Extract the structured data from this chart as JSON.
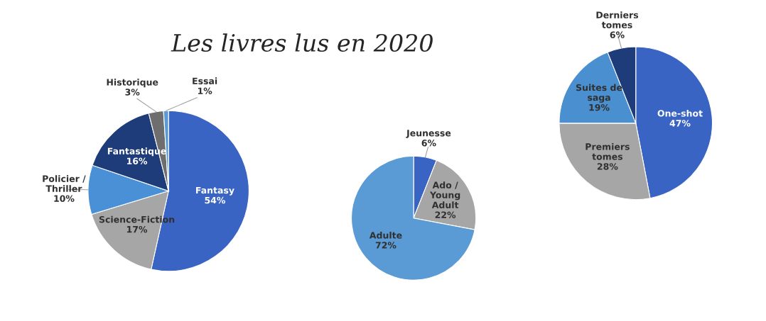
{
  "chart_data": [
    {
      "type": "pie",
      "title": "Les livres lus en 2020",
      "categories": [
        "Fantasy",
        "Science-Fiction",
        "Policier / Thriller",
        "Fantastique",
        "Historique",
        "Essai"
      ],
      "values": [
        54,
        17,
        10,
        16,
        3,
        1
      ],
      "value_labels": [
        "54%",
        "17%",
        "10%",
        "16%",
        "3%",
        "1%"
      ],
      "colors": [
        "#3a64c4",
        "#a6a6a6",
        "#4a90d6",
        "#1f3c7a",
        "#6e6e6e",
        "#5b9bd5"
      ],
      "legend": false
    },
    {
      "type": "pie",
      "categories": [
        "Jeunesse",
        "Ado / Young Adult",
        "Adulte"
      ],
      "values": [
        6,
        22,
        72
      ],
      "value_labels": [
        "6%",
        "22%",
        "72%"
      ],
      "colors": [
        "#3a64c4",
        "#a6a6a6",
        "#5b9bd5"
      ],
      "legend": false
    },
    {
      "type": "pie",
      "categories": [
        "One-shot",
        "Premiers tomes",
        "Suites de saga",
        "Derniers tomes"
      ],
      "values": [
        47,
        28,
        19,
        6
      ],
      "value_labels": [
        "47%",
        "28%",
        "19%",
        "6%"
      ],
      "colors": [
        "#3a64c4",
        "#a6a6a6",
        "#4a90d0",
        "#1f3c7a"
      ],
      "legend": false
    }
  ]
}
